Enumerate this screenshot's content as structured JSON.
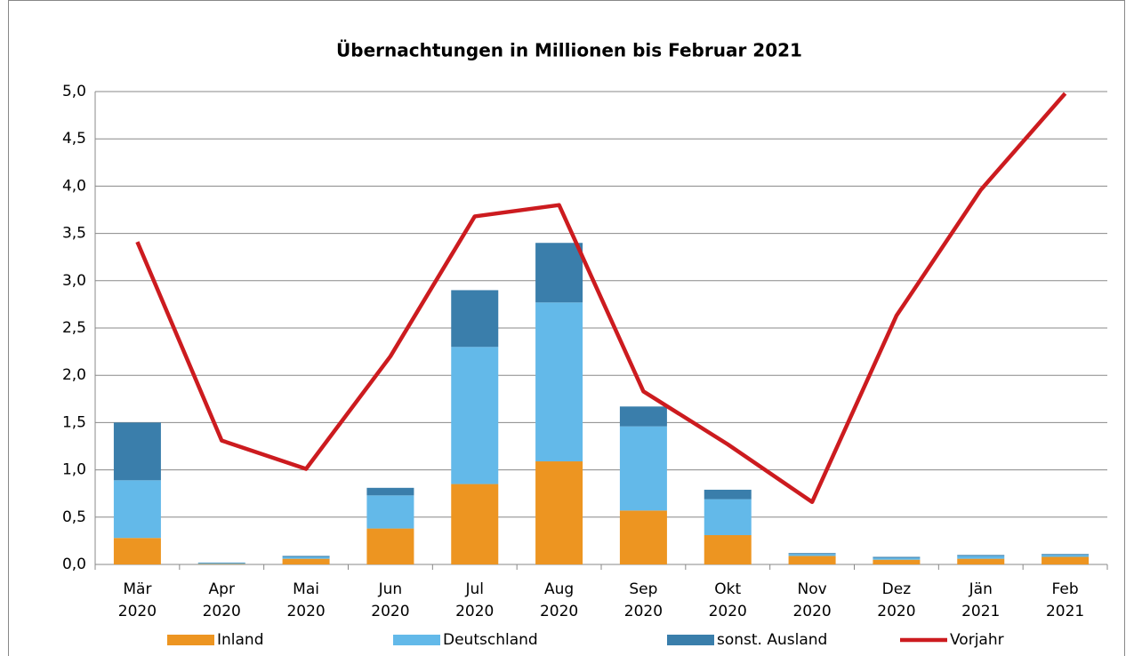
{
  "chart_data": {
    "type": "bar_line",
    "title": "Übernachtungen in Millionen bis Februar 2021",
    "categories": [
      "Mär 2020",
      "Apr 2020",
      "Mai 2020",
      "Jun 2020",
      "Jul 2020",
      "Aug 2020",
      "Sep 2020",
      "Okt 2020",
      "Nov 2020",
      "Dez 2020",
      "Jän 2021",
      "Feb 2021"
    ],
    "series": [
      {
        "name": "Inland",
        "color": "#ed9521",
        "kind": "bar",
        "values": [
          0.28,
          0.005,
          0.06,
          0.38,
          0.85,
          1.09,
          0.57,
          0.31,
          0.09,
          0.05,
          0.06,
          0.08
        ]
      },
      {
        "name": "Deutschland",
        "color": "#63b9e9",
        "kind": "bar",
        "values": [
          0.61,
          0.01,
          0.02,
          0.35,
          1.45,
          1.68,
          0.89,
          0.38,
          0.02,
          0.02,
          0.03,
          0.02
        ]
      },
      {
        "name": "sonst. Ausland",
        "color": "#3a7eab",
        "kind": "bar",
        "values": [
          0.61,
          0.005,
          0.01,
          0.08,
          0.6,
          0.63,
          0.21,
          0.1,
          0.01,
          0.01,
          0.01,
          0.01
        ]
      },
      {
        "name": "Vorjahr",
        "color": "#cc1b1f",
        "kind": "line",
        "values": [
          3.41,
          1.31,
          1.01,
          2.2,
          3.68,
          3.8,
          1.83,
          1.27,
          0.66,
          2.63,
          3.96,
          4.98
        ]
      }
    ],
    "ylim": [
      0,
      5
    ],
    "yticks": [
      {
        "value": 0,
        "label": "0,0"
      },
      {
        "value": 0.5,
        "label": "0,5"
      },
      {
        "value": 1,
        "label": "1,0"
      },
      {
        "value": 1.5,
        "label": "1,5"
      },
      {
        "value": 2,
        "label": "2,0"
      },
      {
        "value": 2.5,
        "label": "2,5"
      },
      {
        "value": 3,
        "label": "3,0"
      },
      {
        "value": 3.5,
        "label": "3,5"
      },
      {
        "value": 4,
        "label": "4,0"
      },
      {
        "value": 4.5,
        "label": "4,5"
      },
      {
        "value": 5,
        "label": "5,0"
      }
    ],
    "grid": true
  }
}
